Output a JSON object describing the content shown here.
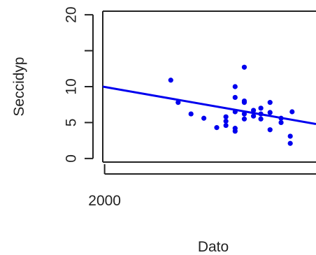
{
  "chart_data": {
    "type": "scatter",
    "xlabel": "Dato",
    "ylabel": "Seccidyp",
    "x_ticks": [
      2000
    ],
    "y_ticks": [
      0,
      5,
      10,
      15,
      20
    ],
    "y_tick_labels": [
      "0",
      "5",
      "10",
      "",
      "20"
    ],
    "xlim": [
      1999.9,
      2011.5
    ],
    "ylim": [
      -0.5,
      20.5
    ],
    "grid": false,
    "legend": "none",
    "colors": {
      "points": "#0000ee",
      "fit_line": "#0000ee",
      "axis": "#222222"
    },
    "series": [
      {
        "points": [
          [
            2003.6,
            10.9
          ],
          [
            2004.0,
            7.8
          ],
          [
            2004.7,
            6.2
          ],
          [
            2005.4,
            5.6
          ],
          [
            2006.1,
            4.3
          ],
          [
            2006.6,
            5.2
          ],
          [
            2006.6,
            4.6
          ],
          [
            2006.6,
            5.8
          ],
          [
            2007.1,
            3.8
          ],
          [
            2007.1,
            4.2
          ],
          [
            2007.1,
            6.5
          ],
          [
            2007.1,
            8.5
          ],
          [
            2007.1,
            10.0
          ],
          [
            2007.6,
            12.7
          ],
          [
            2007.6,
            8.0
          ],
          [
            2007.6,
            7.8
          ],
          [
            2007.6,
            6.2
          ],
          [
            2007.6,
            5.5
          ],
          [
            2008.1,
            6.7
          ],
          [
            2008.1,
            5.9
          ],
          [
            2008.5,
            7.0
          ],
          [
            2008.5,
            6.2
          ],
          [
            2008.5,
            5.5
          ],
          [
            2009.0,
            4.0
          ],
          [
            2009.0,
            7.8
          ],
          [
            2009.0,
            6.4
          ],
          [
            2009.6,
            5.0
          ],
          [
            2009.6,
            5.6
          ],
          [
            2010.1,
            2.1
          ],
          [
            2010.1,
            3.1
          ],
          [
            2010.2,
            6.5
          ]
        ]
      }
    ],
    "fit_line": {
      "x": [
        1999.9,
        2011.5
      ],
      "y": [
        10.0,
        4.8
      ]
    }
  }
}
